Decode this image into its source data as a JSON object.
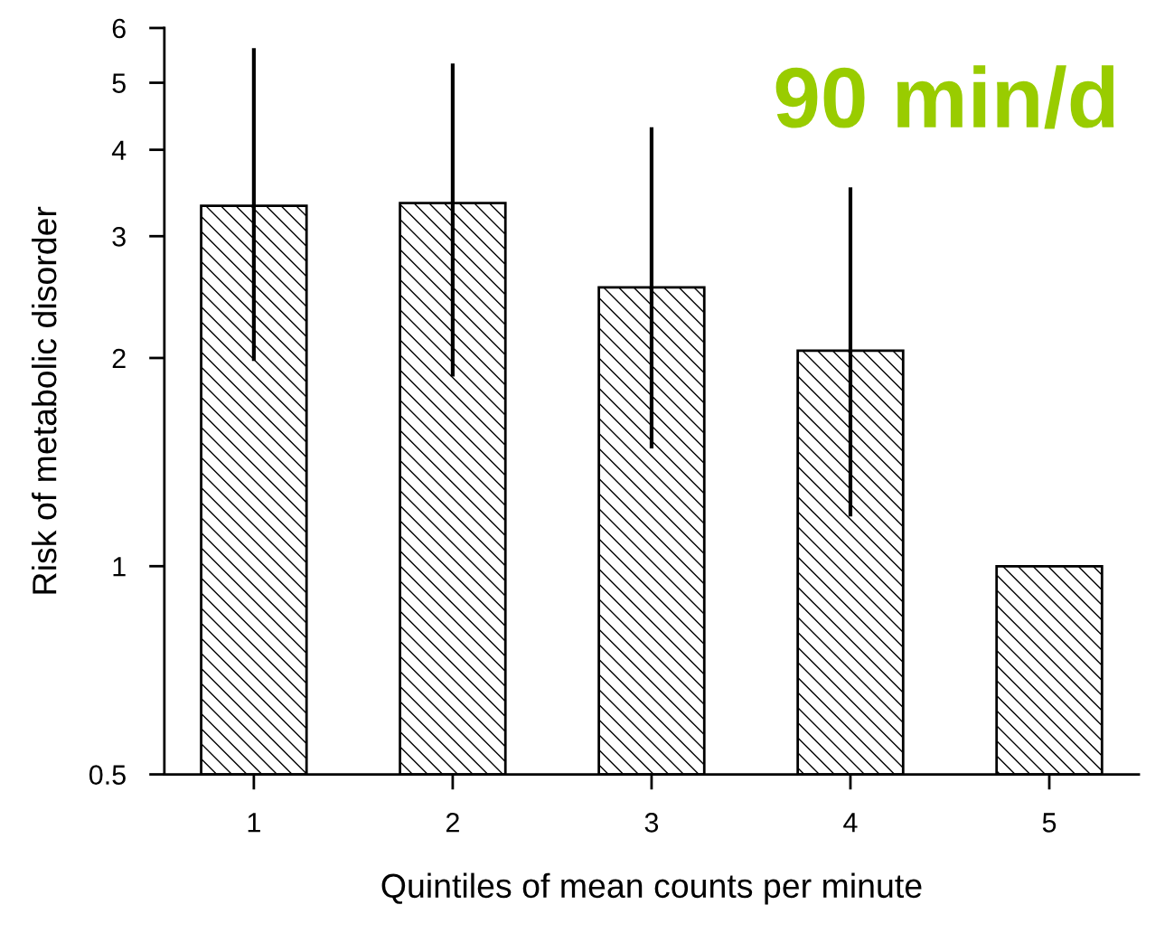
{
  "chart_data": {
    "type": "bar",
    "xlabel": "Quintiles of mean counts per minute",
    "ylabel": "Risk of metabolic disorder",
    "categories": [
      "1",
      "2",
      "3",
      "4",
      "5"
    ],
    "values": [
      3.32,
      3.35,
      2.53,
      2.05,
      1.0
    ],
    "errors": [
      [
        1.98,
        5.61
      ],
      [
        1.88,
        5.33
      ],
      [
        1.48,
        4.31
      ],
      [
        1.18,
        3.53
      ],
      null
    ],
    "color": "#000000",
    "log": "y",
    "ylim": [
      0.5,
      6
    ],
    "yticks": [
      0.5,
      1,
      2,
      3,
      4,
      5,
      6
    ],
    "annotations": [
      "90 min/d"
    ],
    "grid": false
  }
}
